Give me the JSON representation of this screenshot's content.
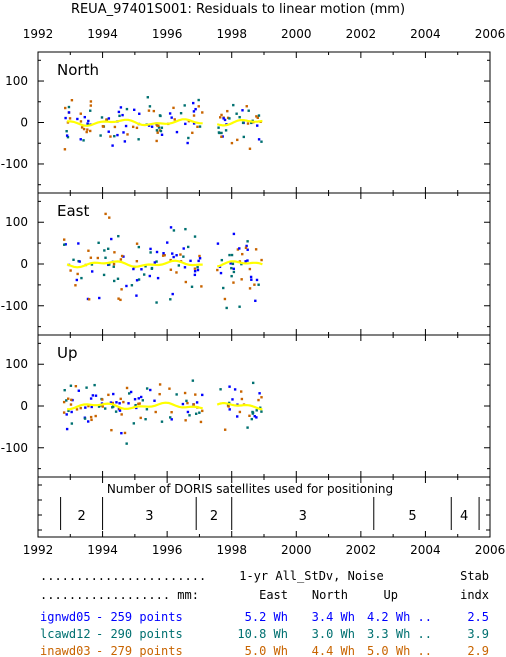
{
  "chart_data": {
    "type": "scatter",
    "title": "REUA_97401S001: Residuals to linear motion (mm)",
    "xlim": [
      1992,
      2006
    ],
    "x_ticks": [
      "1992",
      "1994",
      "1996",
      "1998",
      "2000",
      "2002",
      "2004",
      "2006"
    ],
    "ylim": [
      -170,
      170
    ],
    "y_ticks": [
      "100",
      "0",
      "-100"
    ],
    "panels": [
      {
        "name": "North",
        "data_start": 1992.8,
        "data_end": 1998.95,
        "spread": 28,
        "gap": [
          1997.1,
          1997.55
        ]
      },
      {
        "name": "East",
        "data_start": 1992.8,
        "data_end": 1998.95,
        "spread": 40,
        "gap": [
          1997.1,
          1997.55
        ]
      },
      {
        "name": "Up",
        "data_start": 1992.8,
        "data_end": 1998.95,
        "spread": 27,
        "gap": [
          1997.1,
          1997.55
        ]
      }
    ],
    "series": [
      {
        "name": "ignwd05",
        "color": "#0000ff"
      },
      {
        "name": "lcawd12",
        "color": "#007070"
      },
      {
        "name": "inawd03",
        "color": "#c86400"
      },
      {
        "name": "combined",
        "color": "#ffff00"
      }
    ],
    "satellites": {
      "title": "Number of DORIS satellites used for positioning",
      "segments": [
        {
          "start": 1992.7,
          "end": 1994.0,
          "count": "2"
        },
        {
          "start": 1994.0,
          "end": 1996.9,
          "count": "3"
        },
        {
          "start": 1996.9,
          "end": 1998.0,
          "count": "2"
        },
        {
          "start": 1998.0,
          "end": 2002.4,
          "count": "3"
        },
        {
          "start": 2002.4,
          "end": 2004.8,
          "count": "5"
        },
        {
          "start": 2004.8,
          "end": 2005.6,
          "count": "4"
        }
      ]
    },
    "stats": {
      "header1_lead": ".......................",
      "header1_rest": " 1-yr All_StDv, Noise",
      "header1_stab": "Stab",
      "header2_lead": ".................. mm:",
      "header2_cols": [
        "East",
        "North",
        "Up"
      ],
      "header2_indx": "indx",
      "rows": [
        {
          "name": "ignwd05",
          "points": "- 259 points",
          "east": "5.2 Wh",
          "north": "3.4 Wh",
          "up": "4.2 Wh ..",
          "stab": "2.5",
          "color": "#0000ff"
        },
        {
          "name": "lcawd12",
          "points": "- 290 points",
          "east": "10.8 Wh",
          "north": "3.0 Wh",
          "up": "3.3 Wh ..",
          "stab": "3.9",
          "color": "#007070"
        },
        {
          "name": "inawd03",
          "points": "- 279 points",
          "east": "5.0 Wh",
          "north": "4.4 Wh",
          "up": "5.0 Wh ..",
          "stab": "2.9",
          "color": "#c86400"
        }
      ]
    }
  }
}
